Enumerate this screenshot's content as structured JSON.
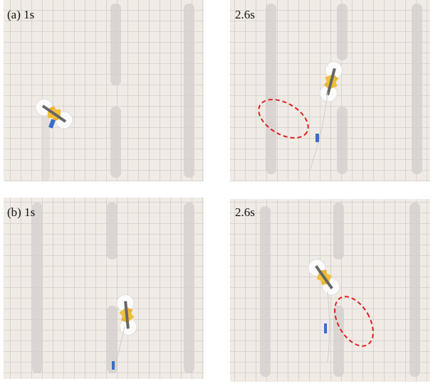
{
  "panels": [
    {
      "label": "(a) 1s"
    },
    {
      "label": "2.6s"
    },
    {
      "label": "(b) 1s"
    },
    {
      "label": "2.6s"
    }
  ]
}
